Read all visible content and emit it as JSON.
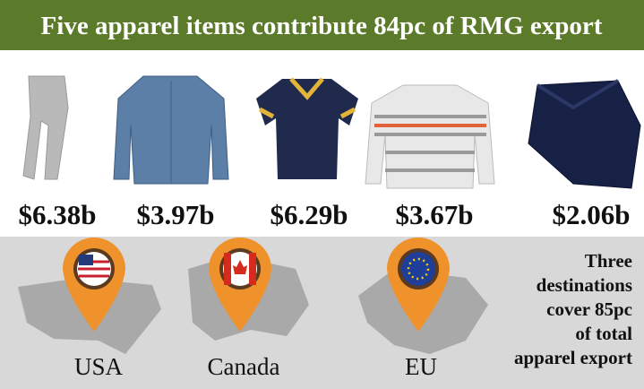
{
  "header": {
    "title": "Five apparel items contribute 84pc of RMG export"
  },
  "items": [
    {
      "value": "$6.38b"
    },
    {
      "value": "$3.97b"
    },
    {
      "value": "$6.29b"
    },
    {
      "value": "$3.67b"
    },
    {
      "value": "$2.06b"
    }
  ],
  "destinations": [
    {
      "label": "USA"
    },
    {
      "label": "Canada"
    },
    {
      "label": "EU"
    }
  ],
  "note": {
    "lines": [
      "Three",
      "destinations",
      "cover 85pc",
      "of total",
      "apparel export"
    ]
  }
}
